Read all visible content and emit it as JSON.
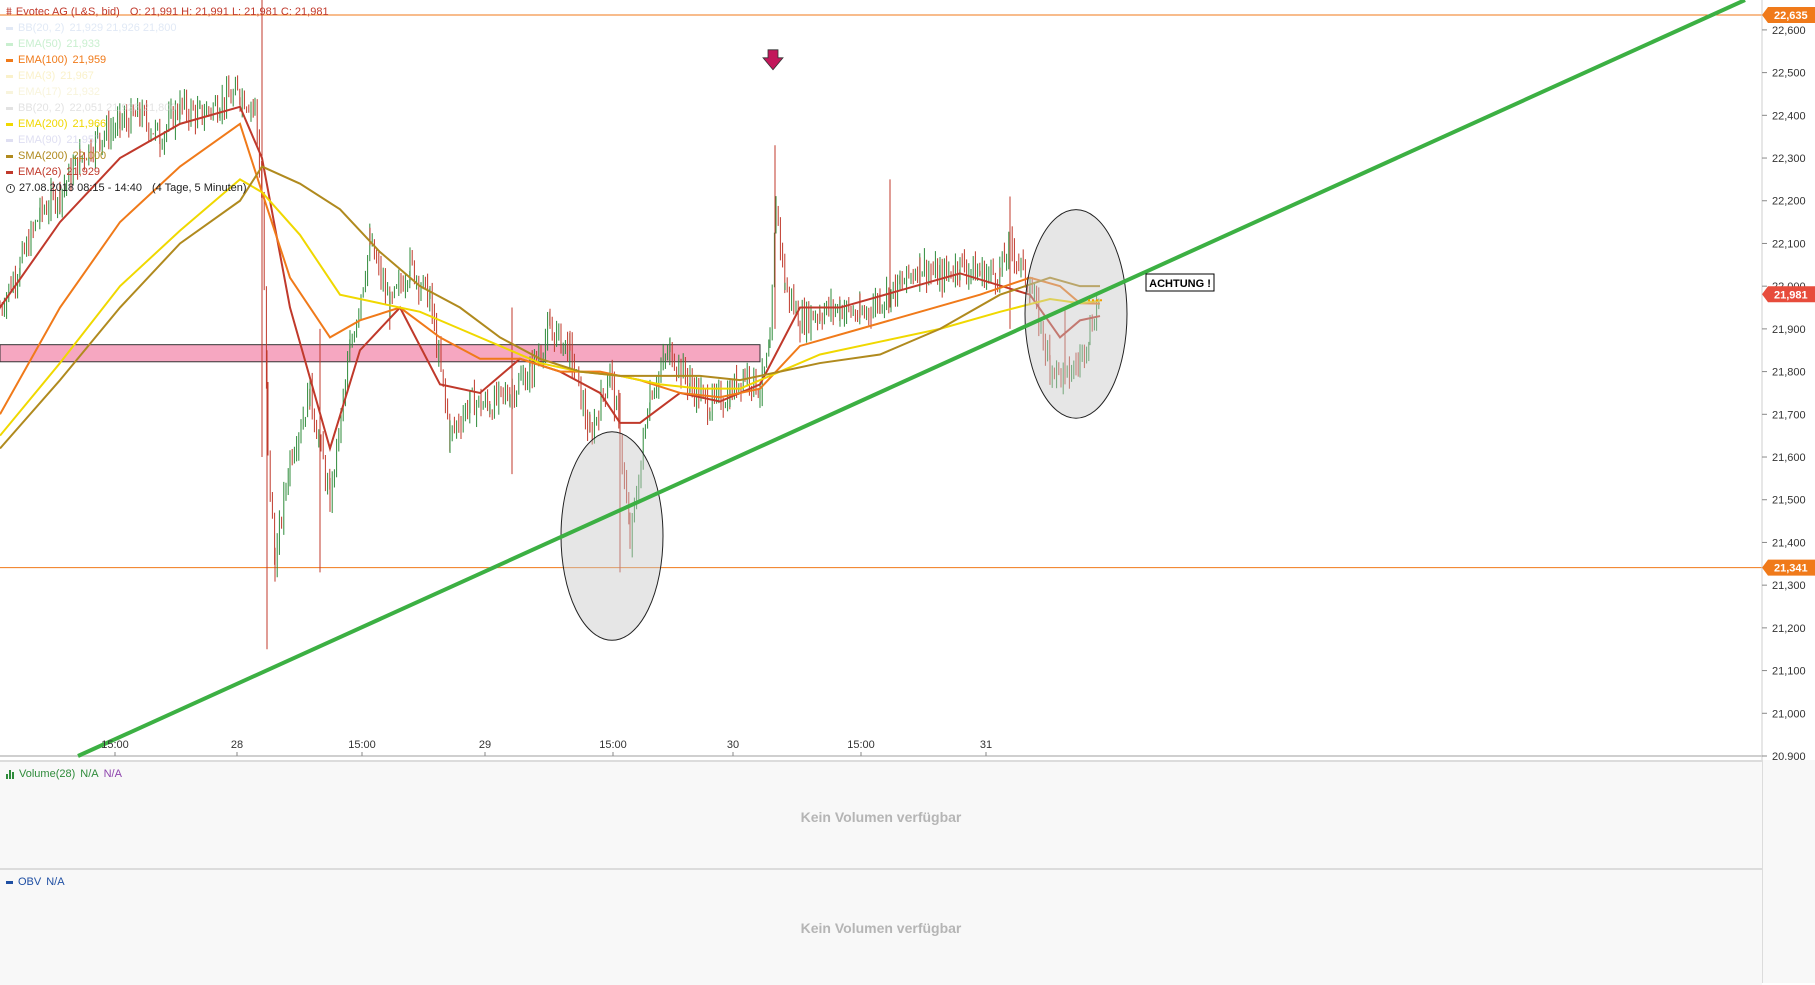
{
  "instrument": {
    "title": "Evotec AG (L&S, bid)",
    "ohlc": "O: 21,991  H: 21,991  L: 21,981  C: 21,981",
    "date_range": "27.08.2018 08:15 - 14:40",
    "period": "(4 Tage, 5 Minuten)"
  },
  "indicators": [
    {
      "label": "BB(20, 2)",
      "value": "21,929  21,926  21,800",
      "color": "#c7d7ee",
      "faded": true
    },
    {
      "label": "EMA(50)",
      "value": "21,933",
      "color": "#9ee3a9",
      "faded": true
    },
    {
      "label": "EMA(100)",
      "value": "21,959",
      "color": "#f07a1a",
      "faded": false
    },
    {
      "label": "EMA(3)",
      "value": "21,967",
      "color": "#f6e7a0",
      "faded": true
    },
    {
      "label": "EMA(17)",
      "value": "21,932",
      "color": "#f3ecc0",
      "faded": true
    },
    {
      "label": "BB(20, 2)",
      "value": "22,051  21,928  21,800",
      "color": "#cccccc",
      "faded": true
    },
    {
      "label": "EMA(200)",
      "value": "21,966",
      "color": "#f0d800",
      "faded": false
    },
    {
      "label": "EMA(90)",
      "value": "21,957",
      "color": "#c5c5e8",
      "faded": true
    },
    {
      "label": "SMA(200)",
      "value": "22,000",
      "color": "#b08a1e",
      "faded": false
    },
    {
      "label": "EMA(26)",
      "value": "21,929",
      "color": "#c0392b",
      "faded": false
    }
  ],
  "annotation_text": "ACHTUNG !",
  "price_tags": {
    "upper": "22,635",
    "current": "21,981",
    "lower": "21,341"
  },
  "colors": {
    "up": "#2e8b3a",
    "down": "#c0392b",
    "trendline": "#3cb043",
    "zone_fill": "#f6a7c1",
    "hline": "#f07a1a",
    "arrow": "#c2185b",
    "current_tag": "#e74c3c"
  },
  "chart_data": {
    "type": "line",
    "title": "Evotec AG (L&S, bid)",
    "ylim": [
      20.9,
      22.67
    ],
    "y_ticks": [
      "20,900",
      "21,000",
      "21,100",
      "21,200",
      "21,300",
      "21,400",
      "21,500",
      "21,600",
      "21,700",
      "21,800",
      "21,900",
      "22,000",
      "22,100",
      "22,200",
      "22,300",
      "22,400",
      "22,500",
      "22,600"
    ],
    "y_tick_values": [
      20.9,
      21.0,
      21.1,
      21.2,
      21.3,
      21.4,
      21.5,
      21.6,
      21.7,
      21.8,
      21.9,
      22.0,
      22.1,
      22.2,
      22.3,
      22.4,
      22.5,
      22.6
    ],
    "x_range": [
      0,
      1760
    ],
    "x_ticks": [
      {
        "label": "15:00",
        "x": 115
      },
      {
        "label": "28",
        "x": 237
      },
      {
        "label": "15:00",
        "x": 362
      },
      {
        "label": "29",
        "x": 485
      },
      {
        "label": "15:00",
        "x": 613
      },
      {
        "label": "30",
        "x": 733
      },
      {
        "label": "15:00",
        "x": 861
      },
      {
        "label": "31",
        "x": 986
      }
    ],
    "horizontal_lines": [
      {
        "name": "resistance",
        "y": 22.635
      },
      {
        "name": "support",
        "y": 21.341
      }
    ],
    "zone": {
      "y_from": 21.823,
      "y_to": 21.863,
      "x_from": 0,
      "x_to": 760
    },
    "trendline": {
      "x": [
        78,
        1745
      ],
      "y": [
        20.9,
        22.67
      ]
    },
    "circles": [
      {
        "cx": 612,
        "cy": 21.415,
        "rx": 51,
        "ry": 245
      },
      {
        "cx": 1076,
        "cy": 21.935,
        "rx": 51,
        "ry": 245
      }
    ],
    "arrow": {
      "x": 773,
      "y": 22.53
    },
    "current_price": 21.981,
    "price_series": {
      "x": [
        0,
        20,
        40,
        60,
        80,
        100,
        120,
        140,
        160,
        180,
        200,
        220,
        240,
        255,
        262,
        268,
        275,
        290,
        310,
        330,
        350,
        370,
        390,
        410,
        430,
        450,
        470,
        490,
        510,
        530,
        550,
        570,
        590,
        610,
        620,
        630,
        650,
        670,
        690,
        710,
        730,
        745,
        760,
        770,
        776,
        785,
        800,
        820,
        840,
        860,
        880,
        900,
        920,
        940,
        960,
        980,
        1000,
        1010,
        1030,
        1050,
        1065,
        1080,
        1090,
        1100
      ],
      "y": [
        21.95,
        22.05,
        22.17,
        22.22,
        22.3,
        22.35,
        22.38,
        22.4,
        22.35,
        22.42,
        22.4,
        22.43,
        22.45,
        22.42,
        22.2,
        21.6,
        21.35,
        21.6,
        21.75,
        21.5,
        21.85,
        22.1,
        21.95,
        22.05,
        21.97,
        21.65,
        21.73,
        21.72,
        21.75,
        21.8,
        21.9,
        21.85,
        21.65,
        21.8,
        21.65,
        21.4,
        21.75,
        21.85,
        21.77,
        21.72,
        21.75,
        21.8,
        21.76,
        21.85,
        22.2,
        22.0,
        21.92,
        21.94,
        21.95,
        21.93,
        21.97,
        22.0,
        22.05,
        22.02,
        22.05,
        22.03,
        22.03,
        22.1,
        22.0,
        21.82,
        21.78,
        21.83,
        21.9,
        21.98
      ]
    },
    "series": [
      {
        "name": "EMA(26)",
        "color": "#c0392b",
        "x": [
          0,
          60,
          120,
          180,
          240,
          262,
          290,
          330,
          360,
          400,
          440,
          480,
          520,
          560,
          600,
          620,
          640,
          680,
          720,
          760,
          800,
          840,
          900,
          960,
          1030,
          1060,
          1080,
          1100
        ],
        "y": [
          21.95,
          22.15,
          22.3,
          22.38,
          22.42,
          22.3,
          21.95,
          21.62,
          21.85,
          21.95,
          21.77,
          21.75,
          21.83,
          21.8,
          21.75,
          21.68,
          21.68,
          21.75,
          21.73,
          21.77,
          21.95,
          21.95,
          21.99,
          22.03,
          21.98,
          21.88,
          21.92,
          21.93
        ]
      },
      {
        "name": "EMA(100)",
        "color": "#f07a1a",
        "x": [
          0,
          60,
          120,
          180,
          240,
          262,
          290,
          330,
          360,
          400,
          440,
          480,
          520,
          560,
          600,
          640,
          680,
          720,
          760,
          800,
          860,
          920,
          980,
          1030,
          1060,
          1080,
          1100
        ],
        "y": [
          21.7,
          21.95,
          22.15,
          22.28,
          22.38,
          22.22,
          22.02,
          21.88,
          21.92,
          21.95,
          21.88,
          21.83,
          21.83,
          21.8,
          21.8,
          21.78,
          21.75,
          21.74,
          21.76,
          21.86,
          21.9,
          21.94,
          21.98,
          22.02,
          22.0,
          21.96,
          21.959
        ]
      },
      {
        "name": "EMA(200)",
        "color": "#f0d800",
        "x": [
          0,
          60,
          120,
          180,
          240,
          262,
          300,
          340,
          380,
          420,
          460,
          500,
          540,
          580,
          620,
          660,
          700,
          740,
          780,
          820,
          880,
          940,
          1000,
          1050,
          1080,
          1100
        ],
        "y": [
          21.65,
          21.82,
          22.0,
          22.13,
          22.25,
          22.22,
          22.12,
          21.98,
          21.96,
          21.94,
          21.9,
          21.86,
          21.82,
          21.8,
          21.79,
          21.77,
          21.76,
          21.76,
          21.8,
          21.84,
          21.87,
          21.9,
          21.94,
          21.97,
          21.96,
          21.966
        ]
      },
      {
        "name": "SMA(200)",
        "color": "#b08a1e",
        "x": [
          0,
          60,
          120,
          180,
          240,
          262,
          300,
          340,
          380,
          420,
          460,
          500,
          540,
          580,
          620,
          660,
          700,
          740,
          780,
          820,
          880,
          940,
          1000,
          1050,
          1080,
          1100
        ],
        "y": [
          21.62,
          21.78,
          21.95,
          22.1,
          22.2,
          22.28,
          22.24,
          22.18,
          22.08,
          22.0,
          21.95,
          21.88,
          21.83,
          21.8,
          21.79,
          21.79,
          21.79,
          21.78,
          21.8,
          21.82,
          21.84,
          21.9,
          21.98,
          22.02,
          22.0,
          22.0
        ]
      }
    ]
  },
  "volume_panel": {
    "label": "Volume(28)",
    "value1": "N/A",
    "value2": "N/A",
    "message": "Kein Volumen verfügbar"
  },
  "obv_panel": {
    "label": "OBV",
    "value": "N/A",
    "message": "Kein Volumen verfügbar"
  }
}
